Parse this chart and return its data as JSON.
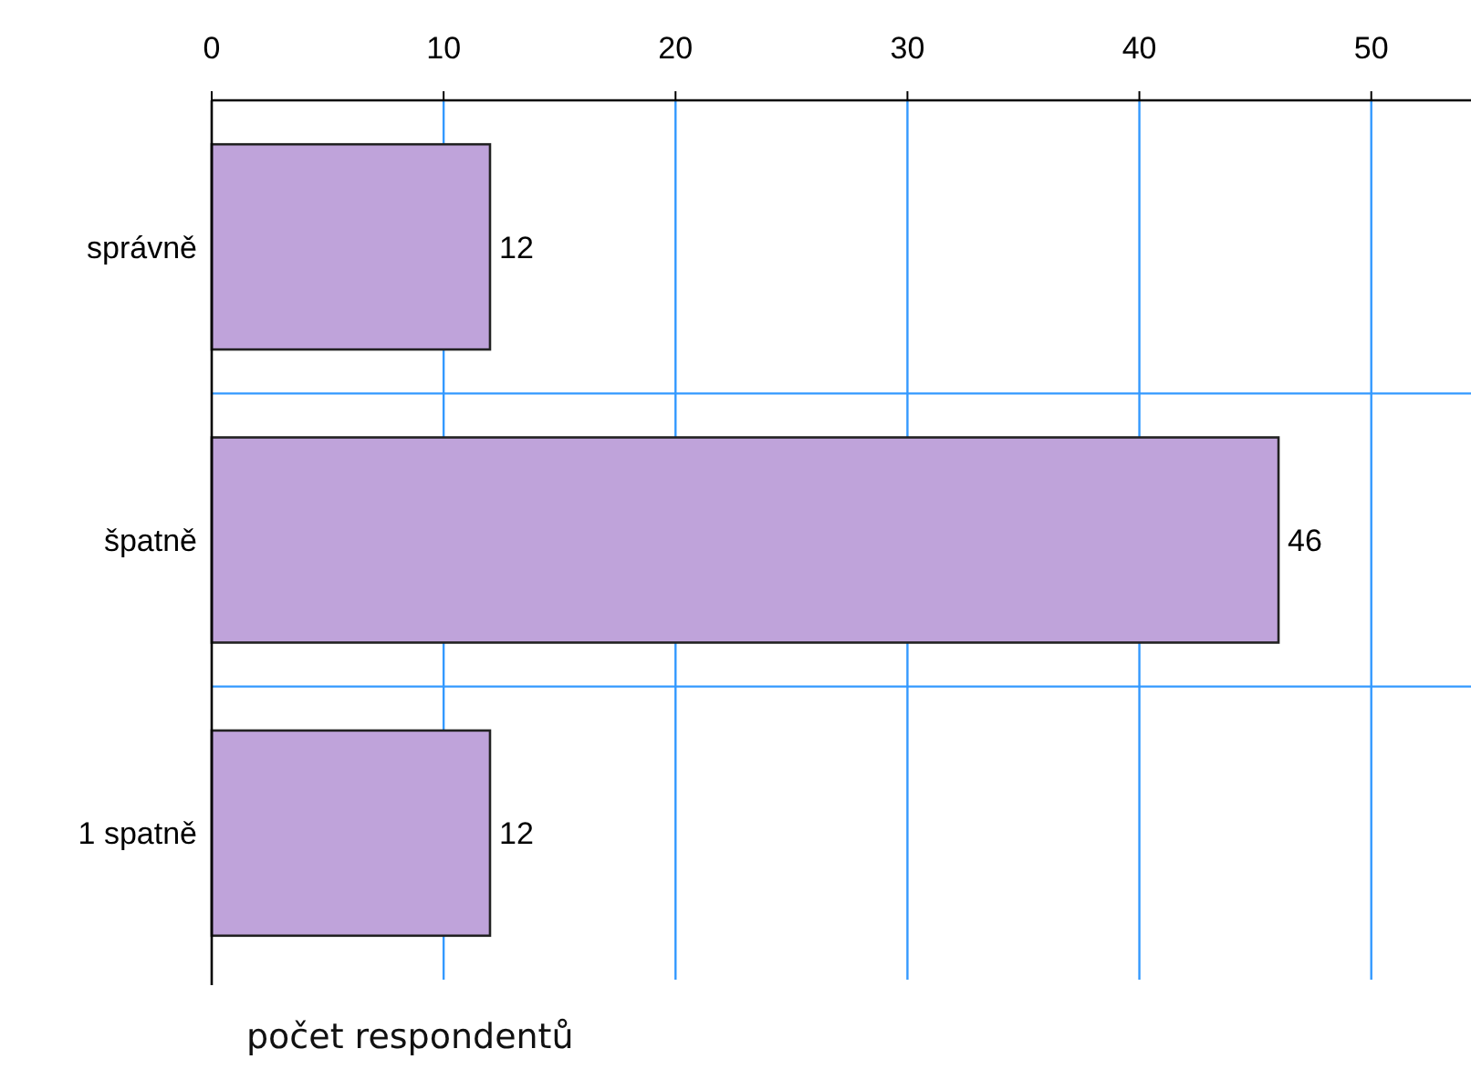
{
  "chart_data": {
    "type": "bar",
    "orientation": "horizontal",
    "categories": [
      "správně",
      "špatně",
      "1 spatně"
    ],
    "values": [
      12,
      46,
      12
    ],
    "color": "#bfa3da",
    "xlim": [
      0,
      54.3
    ],
    "xticks": [
      0,
      10,
      20,
      30,
      40,
      50
    ],
    "grid": true,
    "data_labels": true,
    "xlabel": "počet respondentů"
  }
}
